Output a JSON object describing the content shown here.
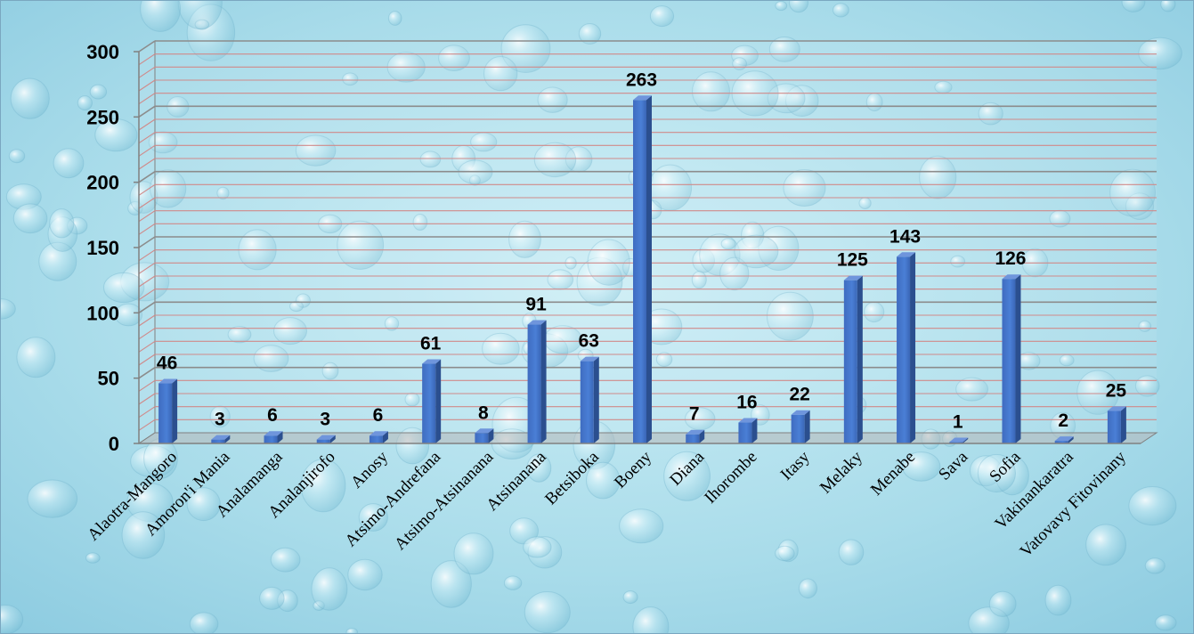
{
  "chart_data": {
    "type": "bar",
    "title": "",
    "xlabel": "",
    "ylabel": "",
    "ylim": [
      0,
      300
    ],
    "yticks": [
      0,
      50,
      100,
      150,
      200,
      250,
      300
    ],
    "grid": true,
    "legend": "none",
    "bar_color": "#4472c4",
    "categories": [
      "Alaotra-Mangoro",
      "Amoron'i Mania",
      "Analamanga",
      "Analanjirofo",
      "Anosy",
      "Atsimo-Andrefana",
      "Atsimo-Atsinanana",
      "Atsinanana",
      "Betsiboka",
      "Boeny",
      "Diana",
      "Ihorombe",
      "Itasy",
      "Melaky",
      "Menabe",
      "Sava",
      "Sofia",
      "Vakinankaratra",
      "Vatovavy Fitovinany"
    ],
    "values": [
      46,
      3,
      6,
      3,
      6,
      61,
      8,
      91,
      63,
      263,
      7,
      16,
      22,
      125,
      143,
      1,
      126,
      2,
      25
    ]
  }
}
